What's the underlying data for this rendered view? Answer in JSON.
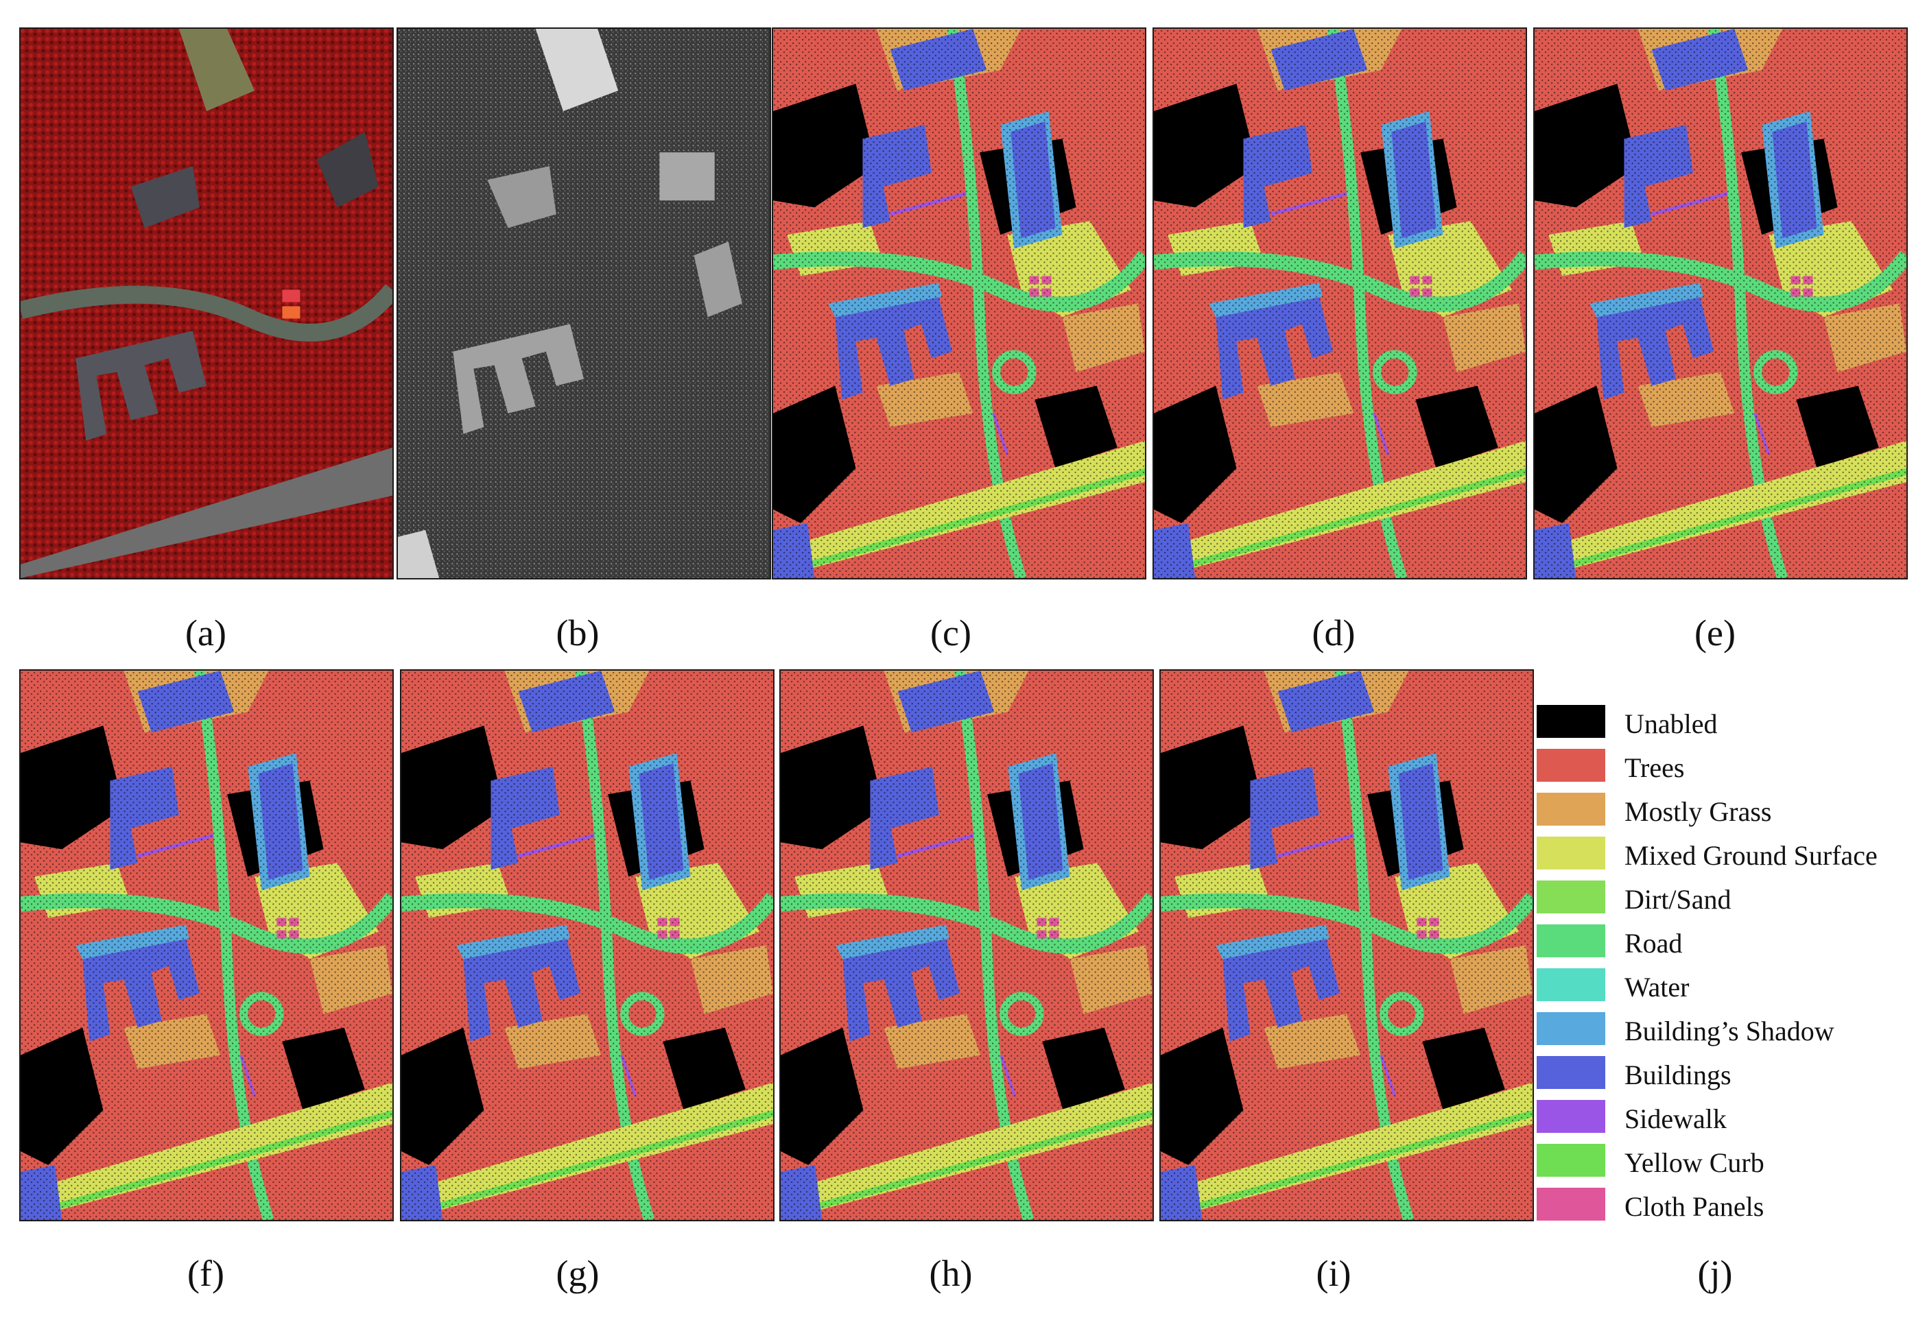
{
  "captions": [
    "(a)",
    "(b)",
    "(c)",
    "(d)",
    "(e)",
    "(f)",
    "(g)",
    "(h)",
    "(i)",
    "(j)"
  ],
  "legend": [
    {
      "label": "Unabled",
      "color": "#000000"
    },
    {
      "label": "Trees",
      "color": "#de5a50"
    },
    {
      "label": "Mostly Grass",
      "color": "#dfa456"
    },
    {
      "label": "Mixed Ground Surface",
      "color": "#d7e05a"
    },
    {
      "label": "Dirt/Sand",
      "color": "#86de56"
    },
    {
      "label": "Road",
      "color": "#5bdc7c"
    },
    {
      "label": "Water",
      "color": "#54dcc4"
    },
    {
      "label": "Building’s Shadow",
      "color": "#57a9de"
    },
    {
      "label": "Buildings",
      "color": "#5562dc"
    },
    {
      "label": "Sidewalk",
      "color": "#9a55e6"
    },
    {
      "label": "Yellow Curb",
      "color": "#6fde52"
    },
    {
      "label": "Cloth Panels",
      "color": "#e0569b"
    }
  ]
}
